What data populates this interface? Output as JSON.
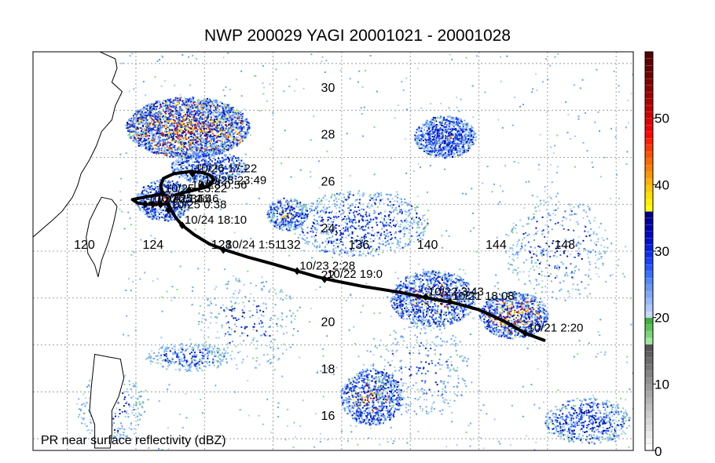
{
  "title": "NWP 200029 YAGI 20001021 - 20001028",
  "footer_label": "PR near surface reflectivity (dBZ)",
  "map": {
    "lon_range": [
      117,
      152
    ],
    "lat_range": [
      14.5,
      31.5
    ],
    "lon_ticks": [
      120,
      124,
      128,
      132,
      136,
      140,
      144,
      148
    ],
    "lat_ticks": [
      16,
      18,
      20,
      22,
      24,
      26,
      28,
      30
    ],
    "gridline_lons": [
      119,
      123,
      127,
      131,
      135,
      139,
      143,
      147,
      151
    ],
    "gridline_lats": [
      15,
      17,
      19,
      21,
      23,
      25,
      27,
      29,
      31
    ],
    "grid": "dotted"
  },
  "track": [
    [
      146.8,
      19.2
    ],
    [
      145.7,
      19.5
    ],
    [
      144.5,
      20.0
    ],
    [
      143.0,
      20.5
    ],
    [
      141.5,
      20.8
    ],
    [
      140.0,
      21.0
    ],
    [
      138.7,
      21.2
    ],
    [
      137.5,
      21.35
    ],
    [
      136.2,
      21.5
    ],
    [
      134.5,
      21.75
    ],
    [
      133.6,
      21.9
    ],
    [
      132.4,
      22.15
    ],
    [
      131.0,
      22.45
    ],
    [
      129.5,
      22.75
    ],
    [
      128.2,
      23.05
    ],
    [
      127.3,
      23.3
    ],
    [
      126.4,
      23.7
    ],
    [
      125.7,
      24.1
    ],
    [
      125.3,
      24.45
    ],
    [
      125.05,
      24.75
    ],
    [
      124.9,
      25.0
    ],
    [
      124.45,
      25.0
    ],
    [
      124.0,
      25.0
    ],
    [
      123.55,
      25.0
    ],
    [
      123.1,
      25.05
    ],
    [
      122.8,
      25.2
    ],
    [
      124.55,
      25.45
    ],
    [
      124.45,
      25.8
    ],
    [
      124.6,
      26.1
    ],
    [
      125.2,
      26.3
    ],
    [
      126.2,
      26.4
    ],
    [
      126.85,
      26.35
    ],
    [
      127.3,
      26.25
    ],
    [
      127.55,
      26.05
    ],
    [
      127.2,
      25.75
    ],
    [
      126.4,
      25.6
    ],
    [
      125.8,
      25.5
    ],
    [
      125.3,
      25.4
    ]
  ],
  "markers": [
    {
      "lon": 145.7,
      "lat": 19.5,
      "label": "10/21 2:20"
    },
    {
      "lon": 141.3,
      "lat": 20.85,
      "label": "10/21 18:08"
    },
    {
      "lon": 139.9,
      "lat": 21.05,
      "label": "10/22 3:43"
    },
    {
      "lon": 134.0,
      "lat": 21.8,
      "label": "10/22 19:0"
    },
    {
      "lon": 132.4,
      "lat": 22.15,
      "label": "10/23 2:28"
    },
    {
      "lon": 128.1,
      "lat": 23.05,
      "label": "10/24 1:51"
    },
    {
      "lon": 125.7,
      "lat": 24.1,
      "label": "10/24 18:10"
    },
    {
      "lon": 124.9,
      "lat": 24.75,
      "label": "10/25 0:38"
    },
    {
      "lon": 124.45,
      "lat": 25.0,
      "label": "10/25 1:46"
    },
    {
      "lon": 124.0,
      "lat": 25.0,
      "label": "10/26 1:55"
    },
    {
      "lon": 123.55,
      "lat": 25.0,
      "label": "10/27 1:34"
    },
    {
      "lon": 124.55,
      "lat": 25.45,
      "label": "10/25 23:22"
    },
    {
      "lon": 126.3,
      "lat": 26.3,
      "label": "10/26 17:22"
    },
    {
      "lon": 126.85,
      "lat": 25.8,
      "label": "10/28 23:49"
    },
    {
      "lon": 126.1,
      "lat": 25.6,
      "label": "10/28 0:56"
    }
  ],
  "echo_regions": [
    {
      "lon": 126.0,
      "lat": 28.3,
      "rx": 3.6,
      "ry": 1.3,
      "density": 2600,
      "intensity": 0.9
    },
    {
      "lon": 127.2,
      "lat": 26.6,
      "rx": 2.2,
      "ry": 0.7,
      "density": 600,
      "intensity": 0.55
    },
    {
      "lon": 124.6,
      "lat": 25.2,
      "rx": 1.6,
      "ry": 0.9,
      "density": 700,
      "intensity": 0.7
    },
    {
      "lon": 141.0,
      "lat": 27.9,
      "rx": 1.8,
      "ry": 0.9,
      "density": 900,
      "intensity": 0.6
    },
    {
      "lon": 140.3,
      "lat": 21.0,
      "rx": 2.5,
      "ry": 1.2,
      "density": 1100,
      "intensity": 0.7
    },
    {
      "lon": 145.0,
      "lat": 20.3,
      "rx": 2.0,
      "ry": 1.0,
      "density": 900,
      "intensity": 0.85
    },
    {
      "lon": 136.0,
      "lat": 24.2,
      "rx": 4.0,
      "ry": 1.4,
      "density": 800,
      "intensity": 0.45
    },
    {
      "lon": 131.8,
      "lat": 24.6,
      "rx": 1.2,
      "ry": 0.7,
      "density": 350,
      "intensity": 0.6
    },
    {
      "lon": 136.7,
      "lat": 16.8,
      "rx": 1.8,
      "ry": 1.2,
      "density": 800,
      "intensity": 0.75
    },
    {
      "lon": 149.3,
      "lat": 15.8,
      "rx": 2.5,
      "ry": 1.0,
      "density": 600,
      "intensity": 0.5
    },
    {
      "lon": 126.0,
      "lat": 18.5,
      "rx": 2.5,
      "ry": 0.6,
      "density": 300,
      "intensity": 0.35
    },
    {
      "lon": 121.5,
      "lat": 16.4,
      "rx": 2.0,
      "ry": 1.5,
      "density": 250,
      "intensity": 0.3
    },
    {
      "lon": 147.5,
      "lat": 23.2,
      "rx": 3.0,
      "ry": 2.2,
      "density": 350,
      "intensity": 0.35
    },
    {
      "lon": 139.5,
      "lat": 18.0,
      "rx": 3.0,
      "ry": 2.0,
      "density": 300,
      "intensity": 0.3
    },
    {
      "lon": 129.5,
      "lat": 20.0,
      "rx": 3.0,
      "ry": 2.0,
      "density": 250,
      "intensity": 0.3
    }
  ],
  "colorbar": {
    "min": 0,
    "max": 60,
    "tick_labels": [
      "0",
      "10",
      "20",
      "30",
      "40",
      "50"
    ],
    "tick_values": [
      0,
      10,
      20,
      30,
      40,
      50
    ],
    "colors": [
      "#ffffff",
      "#f4f4f4",
      "#eaeaea",
      "#e0e0e0",
      "#d6d6d6",
      "#cccccc",
      "#c0c0c0",
      "#b4b4b4",
      "#a8a8a8",
      "#9c9c9c",
      "#909090",
      "#848484",
      "#787878",
      "#6c6c6c",
      "#606060",
      "#545454",
      "#9ee89e",
      "#7ad67a",
      "#58c458",
      "#3ab23a",
      "#c8d8ff",
      "#b0c8ff",
      "#98b8ff",
      "#80a8f8",
      "#6898f0",
      "#5088ff",
      "#3870ff",
      "#2858ff",
      "#1840ff",
      "#1030f0",
      "#0820e0",
      "#0010d0",
      "#0008c0",
      "#0000b0",
      "#00009c",
      "#000088",
      "#ffff00",
      "#fff000",
      "#ffe000",
      "#ffc800",
      "#ffb000",
      "#ff9800",
      "#ff8000",
      "#ff6800",
      "#ff5000",
      "#ff3800",
      "#ff2000",
      "#ff0800",
      "#f00000",
      "#e00000",
      "#d00000",
      "#c00000",
      "#b00000",
      "#a00000",
      "#900000",
      "#800000",
      "#700000",
      "#680000",
      "#600000",
      "#580000"
    ]
  },
  "palette": {
    "track": "#000000",
    "land": "#ffffff",
    "grid": "#888888"
  }
}
